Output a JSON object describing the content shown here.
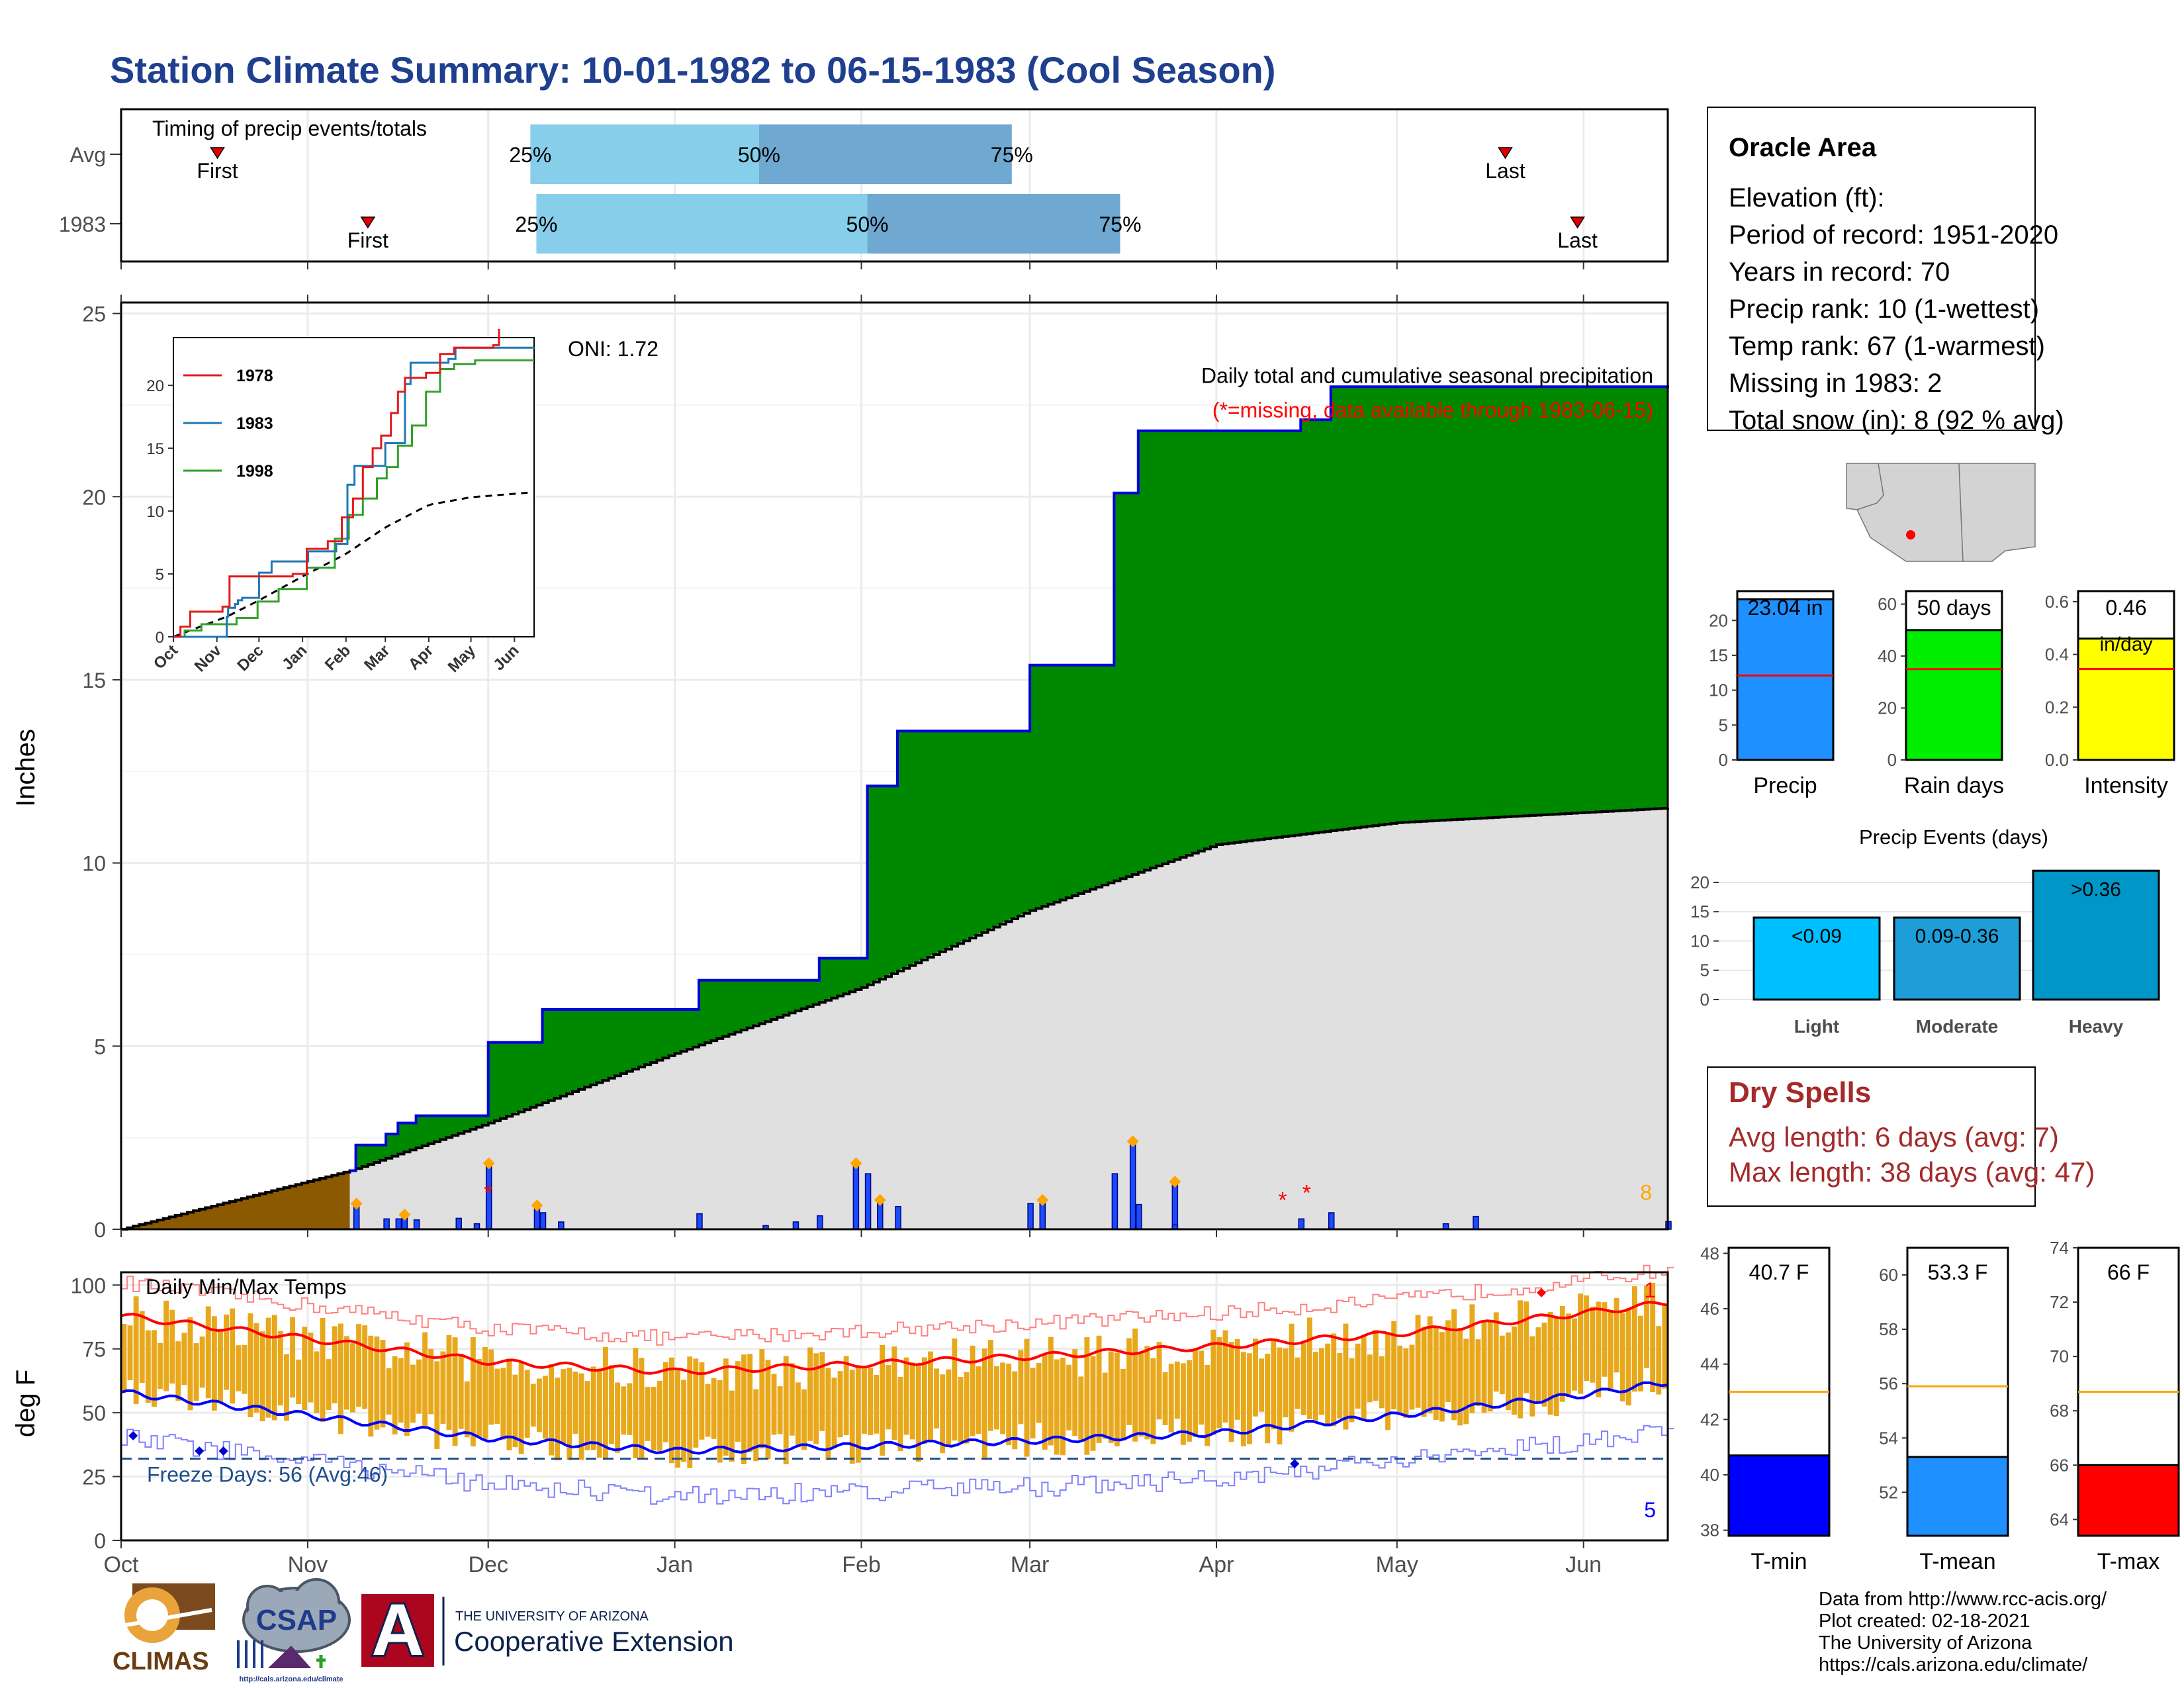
{
  "title": "Station Climate Summary: 10-01-1982 to 06-15-1983 (Cool Season)",
  "months": [
    "Oct",
    "Nov",
    "Dec",
    "Jan",
    "Feb",
    "Mar",
    "Apr",
    "May",
    "Jun"
  ],
  "timing": {
    "label": "Timing of precip events/totals",
    "rows": [
      {
        "name": "Avg",
        "first": "First",
        "last": "Last",
        "q25": "25%",
        "q50": "50%",
        "q75": "75%",
        "first_day": 16,
        "last_day": 230,
        "d25": 68,
        "d50": 106,
        "d75": 148
      },
      {
        "name": "1983",
        "first": "First",
        "last": "Last",
        "q25": "25%",
        "q50": "50%",
        "q75": "75%",
        "first_day": 41,
        "last_day": 242,
        "d25": 69,
        "d50": 124,
        "d75": 166
      }
    ]
  },
  "main_chart": {
    "ylabel": "Inches",
    "yticks": [
      "0",
      "5",
      "10",
      "15",
      "20",
      "25"
    ],
    "heading": "Daily total and cumulative seasonal precipitation",
    "missing_note": "(*=missing, data available through 1983-06-15)",
    "oni": "ONI: 1.72",
    "snow_total": "8"
  },
  "inset": {
    "months": [
      "Oct",
      "Nov",
      "Dec",
      "Jan",
      "Feb",
      "Mar",
      "Apr",
      "May",
      "Jun"
    ],
    "yticks": [
      "0",
      "5",
      "10",
      "15",
      "20"
    ],
    "legend": [
      {
        "name": "1978",
        "color": "#e31a1c"
      },
      {
        "name": "1983",
        "color": "#1f78b4"
      },
      {
        "name": "1998",
        "color": "#33a02c"
      }
    ]
  },
  "temp_chart": {
    "label": "Daily Min/Max Temps",
    "ylabel": "deg F",
    "yticks": [
      "0",
      "25",
      "50",
      "75",
      "100"
    ],
    "freeze": "Freeze Days: 56 (Avg:46)",
    "count_max": "1",
    "count_min": "5"
  },
  "info": {
    "station": "Oracle Area",
    "lines": [
      "Elevation (ft):",
      "Period of record: 1951-2020",
      "Years in record: 70",
      "Precip rank: 10 (1-wettest)",
      "Temp rank: 67 (1-warmest)",
      "Missing in 1983: 2",
      "Total snow (in): 8 (92 % avg)"
    ]
  },
  "summary_bars": [
    {
      "label": "Precip",
      "value": 23.04,
      "text": "23.04 in",
      "avg": 12.1,
      "color": "#1e90ff",
      "yticks": [
        "0",
        "5",
        "10",
        "15",
        "20"
      ],
      "ymax": 24.2
    },
    {
      "label": "Rain days",
      "value": 50,
      "text": "50 days",
      "avg": 35,
      "color": "#00ee00",
      "yticks": [
        "0",
        "20",
        "40",
        "60"
      ],
      "ymax": 65
    },
    {
      "label": "Intensity",
      "value": 0.46,
      "text": "0.46",
      "text2": "in/day",
      "avg": 0.345,
      "color": "#ffff00",
      "yticks": [
        "0.0",
        "0.2",
        "0.4",
        "0.6"
      ],
      "ymax": 0.64
    }
  ],
  "events": {
    "title": "Precip Events (days)",
    "yticks": [
      "0",
      "5",
      "10",
      "15",
      "20"
    ],
    "bars": [
      {
        "label": "Light",
        "text": "<0.09",
        "value": 14,
        "color": "#00bfff"
      },
      {
        "label": "Moderate",
        "text": "0.09-0.36",
        "value": 14,
        "color": "#1e9ed8"
      },
      {
        "label": "Heavy",
        "text": ">0.36",
        "value": 22,
        "color": "#0096c8"
      }
    ]
  },
  "dry_spells": {
    "title": "Dry Spells",
    "avg_length": "Avg length: 6 days (avg: 7)",
    "max_length": "Max length: 38 days (avg: 47)"
  },
  "temp_bars": [
    {
      "label": "T-min",
      "text": "40.7 F",
      "value": 40.7,
      "avg": 43.0,
      "ymin": 37.8,
      "ymax": 48.2,
      "yticks": [
        38,
        40,
        42,
        44,
        46,
        48
      ],
      "color": "#0000ff"
    },
    {
      "label": "T-mean",
      "text": "53.3 F",
      "value": 53.3,
      "avg": 55.9,
      "ymin": 50.4,
      "ymax": 61.0,
      "yticks": [
        52,
        54,
        56,
        58,
        60
      ],
      "color": "#1e90ff"
    },
    {
      "label": "T-max",
      "text": "66 F",
      "value": 66.0,
      "avg": 68.7,
      "ymin": 63.4,
      "ymax": 74.0,
      "yticks": [
        64,
        66,
        68,
        70,
        72,
        74
      ],
      "color": "#ff0000"
    }
  ],
  "credits": [
    "Data from http://www.rcc-acis.org/",
    "Plot created: 02-18-2021",
    "The University of Arizona",
    "https://cals.arizona.edu/climate/"
  ],
  "logos": {
    "climas": "CLIMAS",
    "csap": "CSAP",
    "csap_url": "http://cals.arizona.edu/climate",
    "ua_a": "A",
    "ua_line1": "THE UNIVERSITY OF ARIZONA",
    "ua_line2": "Cooperative Extension"
  },
  "chart_data": {
    "type": "area",
    "title": "Daily total and cumulative seasonal precipitation",
    "ylabel": "Inches",
    "ylim": [
      0,
      25
    ],
    "x_range": [
      "1982-10-01",
      "1983-06-15"
    ],
    "cumulative_precip_1983": [
      {
        "date": "1982-11-08",
        "value": 1.6
      },
      {
        "date": "1982-11-09",
        "value": 2.3
      },
      {
        "date": "1982-11-14",
        "value": 2.6
      },
      {
        "date": "1982-11-16",
        "value": 2.9
      },
      {
        "date": "1982-11-19",
        "value": 3.1
      },
      {
        "date": "1982-12-01",
        "value": 5.1
      },
      {
        "date": "1982-12-10",
        "value": 6.0
      },
      {
        "date": "1983-01-05",
        "value": 6.8
      },
      {
        "date": "1983-01-25",
        "value": 7.4
      },
      {
        "date": "1983-02-02",
        "value": 12.1
      },
      {
        "date": "1983-02-07",
        "value": 13.6
      },
      {
        "date": "1983-03-01",
        "value": 15.4
      },
      {
        "date": "1983-03-15",
        "value": 20.1
      },
      {
        "date": "1983-03-19",
        "value": 21.8
      },
      {
        "date": "1983-04-15",
        "value": 22.1
      },
      {
        "date": "1983-04-20",
        "value": 23.0
      },
      {
        "date": "1983-06-15",
        "value": 23.04
      }
    ],
    "average_cumulative": [
      {
        "date": "1982-10-01",
        "value": 0.0
      },
      {
        "date": "1982-11-08",
        "value": 1.6
      },
      {
        "date": "1982-12-01",
        "value": 2.9
      },
      {
        "date": "1983-01-01",
        "value": 4.8
      },
      {
        "date": "1983-02-01",
        "value": 6.6
      },
      {
        "date": "1983-03-01",
        "value": 8.7
      },
      {
        "date": "1983-04-01",
        "value": 10.5
      },
      {
        "date": "1983-05-01",
        "value": 11.1
      },
      {
        "date": "1983-06-15",
        "value": 11.5
      }
    ],
    "daily_precip_events": [
      {
        "date": "1982-11-09",
        "value": 0.7
      },
      {
        "date": "1982-11-17",
        "value": 0.4
      },
      {
        "date": "1982-12-01",
        "value": 1.8
      },
      {
        "date": "1982-12-09",
        "value": 0.65
      },
      {
        "date": "1983-01-31",
        "value": 1.8
      },
      {
        "date": "1983-02-04",
        "value": 0.8
      },
      {
        "date": "1983-03-03",
        "value": 0.8
      },
      {
        "date": "1983-03-18",
        "value": 2.4
      },
      {
        "date": "1983-03-25",
        "value": 1.3
      }
    ],
    "temperature_f": {
      "ylim": [
        0,
        105
      ],
      "series": [
        {
          "name": "avg_max",
          "points": [
            {
              "date": "1982-10-01",
              "value": 88
            },
            {
              "date": "1982-11-01",
              "value": 79
            },
            {
              "date": "1982-12-01",
              "value": 70
            },
            {
              "date": "1983-01-01",
              "value": 66
            },
            {
              "date": "1983-02-01",
              "value": 69
            },
            {
              "date": "1983-03-01",
              "value": 72
            },
            {
              "date": "1983-04-01",
              "value": 76
            },
            {
              "date": "1983-05-01",
              "value": 81
            },
            {
              "date": "1983-06-01",
              "value": 89
            },
            {
              "date": "1983-06-15",
              "value": 93
            }
          ]
        },
        {
          "name": "avg_min",
          "points": [
            {
              "date": "1982-10-01",
              "value": 58
            },
            {
              "date": "1982-11-01",
              "value": 49
            },
            {
              "date": "1982-12-01",
              "value": 40
            },
            {
              "date": "1983-01-01",
              "value": 35
            },
            {
              "date": "1983-02-01",
              "value": 37
            },
            {
              "date": "1983-03-01",
              "value": 39
            },
            {
              "date": "1983-04-01",
              "value": 42
            },
            {
              "date": "1983-05-01",
              "value": 49
            },
            {
              "date": "1983-06-01",
              "value": 57
            },
            {
              "date": "1983-06-15",
              "value": 62
            }
          ]
        }
      ],
      "freeze_line": 32
    }
  }
}
